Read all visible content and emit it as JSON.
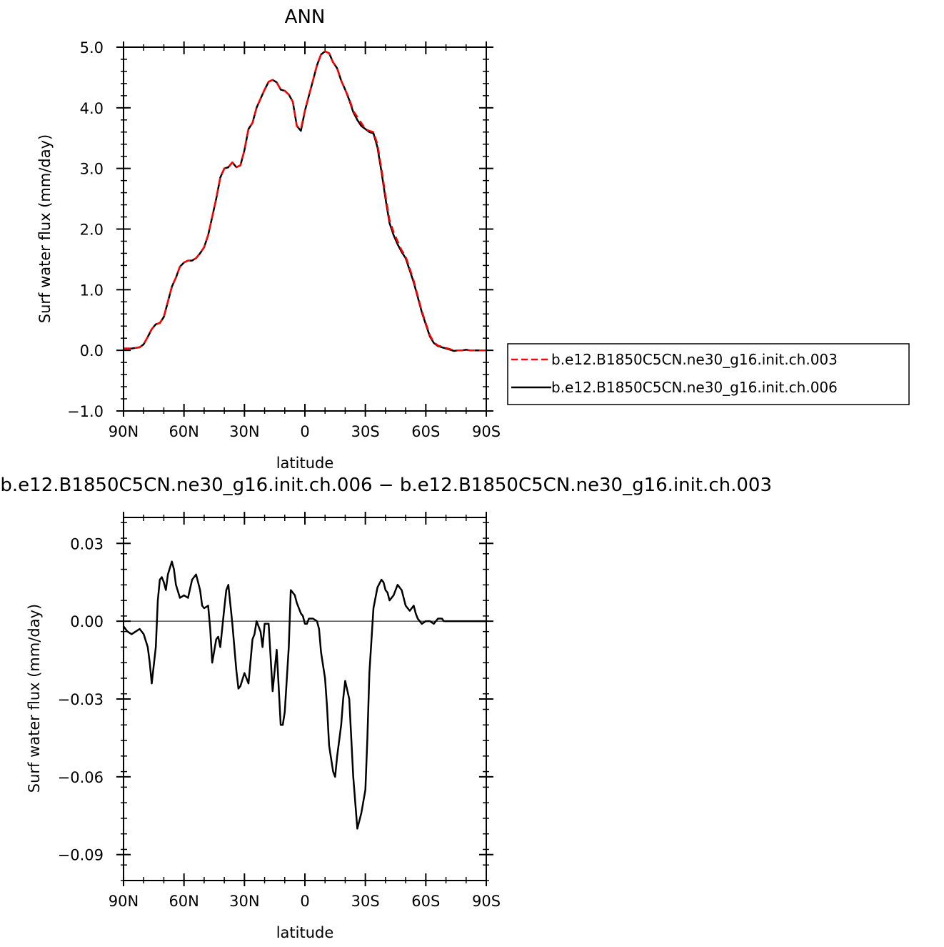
{
  "chart_data": [
    {
      "type": "line",
      "title": "ANN",
      "xlabel": "latitude",
      "ylabel": "Surf water flux (mm/day)",
      "xlim": [
        90,
        -90
      ],
      "ylim": [
        -1.0,
        5.0
      ],
      "xticks": [
        90,
        60,
        30,
        0,
        -30,
        -60,
        -90
      ],
      "xtick_labels": [
        "90N",
        "60N",
        "30N",
        "0",
        "30S",
        "60S",
        "90S"
      ],
      "yticks": [
        -1.0,
        0.0,
        1.0,
        2.0,
        3.0,
        4.0,
        5.0
      ],
      "ytick_labels": [
        "−1.0",
        "0.0",
        "1.0",
        "2.0",
        "3.0",
        "4.0",
        "5.0"
      ],
      "legend": "right",
      "series": [
        {
          "name": "b.e12.B1850C5CN.ne30_g16.init.ch.003",
          "color": "#ff0000",
          "dash": "dashed",
          "x": [
            90,
            86,
            82,
            80,
            78,
            76,
            74,
            72,
            70,
            68,
            66,
            64,
            62,
            60,
            58,
            56,
            54,
            52,
            50,
            48,
            46,
            44,
            42,
            40,
            38,
            36,
            34,
            32,
            30,
            28,
            26,
            24,
            22,
            20,
            18,
            16,
            14,
            12,
            10,
            8,
            6,
            4,
            2,
            0,
            -2,
            -4,
            -6,
            -8,
            -10,
            -12,
            -14,
            -16,
            -18,
            -20,
            -22,
            -24,
            -26,
            -28,
            -30,
            -32,
            -34,
            -36,
            -38,
            -40,
            -42,
            -44,
            -46,
            -48,
            -50,
            -52,
            -54,
            -56,
            -58,
            -60,
            -62,
            -64,
            -66,
            -68,
            -70,
            -72,
            -74,
            -76,
            -78,
            -80,
            -82,
            -84,
            -86,
            -88,
            -90
          ],
          "y": [
            0.03,
            0.03,
            0.05,
            0.1,
            0.22,
            0.35,
            0.43,
            0.45,
            0.55,
            0.8,
            1.05,
            1.2,
            1.38,
            1.45,
            1.48,
            1.48,
            1.52,
            1.6,
            1.7,
            1.9,
            2.2,
            2.5,
            2.85,
            3.0,
            3.02,
            3.1,
            3.02,
            3.05,
            3.3,
            3.65,
            3.75,
            4.0,
            4.15,
            4.3,
            4.43,
            4.46,
            4.42,
            4.3,
            4.28,
            4.22,
            4.1,
            3.7,
            3.65,
            3.95,
            4.2,
            4.45,
            4.7,
            4.88,
            4.93,
            4.9,
            4.75,
            4.65,
            4.45,
            4.3,
            4.15,
            3.95,
            3.85,
            3.75,
            3.65,
            3.62,
            3.6,
            3.4,
            3.0,
            2.55,
            2.15,
            1.95,
            1.8,
            1.65,
            1.55,
            1.35,
            1.15,
            0.9,
            0.65,
            0.45,
            0.25,
            0.13,
            0.08,
            0.06,
            0.04,
            0.02,
            0.0,
            0.0,
            0.0,
            0.01,
            0.0,
            0.0,
            0.0,
            0.0,
            0.0
          ]
        },
        {
          "name": "b.e12.B1850C5CN.ne30_g16.init.ch.006",
          "color": "#000000",
          "dash": "solid",
          "x": [
            90,
            86,
            82,
            80,
            78,
            76,
            74,
            72,
            70,
            68,
            66,
            64,
            62,
            60,
            58,
            56,
            54,
            52,
            50,
            48,
            46,
            44,
            42,
            40,
            38,
            36,
            34,
            32,
            30,
            28,
            26,
            24,
            22,
            20,
            18,
            16,
            14,
            12,
            10,
            8,
            6,
            4,
            2,
            0,
            -2,
            -4,
            -6,
            -8,
            -10,
            -12,
            -14,
            -16,
            -18,
            -20,
            -22,
            -24,
            -26,
            -28,
            -30,
            -32,
            -34,
            -36,
            -38,
            -40,
            -42,
            -44,
            -46,
            -48,
            -50,
            -52,
            -54,
            -56,
            -58,
            -60,
            -62,
            -64,
            -66,
            -68,
            -70,
            -72,
            -74,
            -76,
            -78,
            -80,
            -82,
            -84,
            -86,
            -88,
            -90
          ],
          "y": [
            0.03,
            0.03,
            0.05,
            0.1,
            0.22,
            0.35,
            0.43,
            0.45,
            0.55,
            0.8,
            1.05,
            1.2,
            1.38,
            1.45,
            1.48,
            1.48,
            1.52,
            1.6,
            1.7,
            1.9,
            2.2,
            2.5,
            2.85,
            3.0,
            3.02,
            3.1,
            3.02,
            3.05,
            3.3,
            3.65,
            3.75,
            4.0,
            4.15,
            4.3,
            4.43,
            4.46,
            4.42,
            4.3,
            4.28,
            4.22,
            4.1,
            3.7,
            3.62,
            3.95,
            4.2,
            4.45,
            4.7,
            4.88,
            4.93,
            4.9,
            4.75,
            4.65,
            4.45,
            4.3,
            4.13,
            3.93,
            3.8,
            3.7,
            3.65,
            3.6,
            3.58,
            3.35,
            2.95,
            2.5,
            2.1,
            1.9,
            1.75,
            1.62,
            1.52,
            1.32,
            1.12,
            0.88,
            0.63,
            0.43,
            0.23,
            0.12,
            0.07,
            0.05,
            0.03,
            0.01,
            -0.01,
            0.0,
            0.0,
            0.01,
            0.0,
            0.0,
            0.0,
            0.0,
            0.0
          ]
        }
      ]
    },
    {
      "type": "line",
      "title": "b.e12.B1850C5CN.ne30_g16.init.ch.006 − b.e12.B1850C5CN.ne30_g16.init.ch.003",
      "xlabel": "latitude",
      "ylabel": "Surf water flux (mm/day)",
      "xlim": [
        90,
        -90
      ],
      "ylim": [
        -0.1,
        0.04
      ],
      "xticks": [
        90,
        60,
        30,
        0,
        -30,
        -60,
        -90
      ],
      "xtick_labels": [
        "90N",
        "60N",
        "30N",
        "0",
        "30S",
        "60S",
        "90S"
      ],
      "yticks": [
        -0.09,
        -0.06,
        -0.03,
        0.0,
        0.03
      ],
      "ytick_labels": [
        "−0.09",
        "−0.06",
        "−0.03",
        "0.00",
        "0.03"
      ],
      "series": [
        {
          "color": "#000000",
          "dash": "solid",
          "x": [
            90,
            88,
            86,
            84,
            82,
            80,
            78,
            77,
            76,
            74,
            73,
            72,
            71,
            70,
            69,
            68,
            66,
            65,
            64,
            62,
            60,
            58,
            56,
            54,
            52,
            51,
            50,
            48,
            47,
            46,
            44,
            43,
            42,
            40,
            39,
            38,
            36,
            34,
            33,
            32,
            30,
            28,
            26,
            25,
            24,
            22,
            21,
            20,
            18,
            16,
            14,
            12,
            11,
            10,
            8,
            7,
            6,
            5,
            4,
            2,
            1,
            0,
            -1,
            -2,
            -4,
            -6,
            -7,
            -8,
            -10,
            -11,
            -12,
            -14,
            -15,
            -16,
            -18,
            -19,
            -20,
            -22,
            -24,
            -26,
            -28,
            -30,
            -31,
            -32,
            -34,
            -36,
            -38,
            -39,
            -40,
            -41,
            -42,
            -44,
            -45,
            -46,
            -48,
            -50,
            -52,
            -54,
            -55,
            -56,
            -58,
            -60,
            -62,
            -64,
            -65,
            -66,
            -68,
            -69,
            -70,
            -72,
            -73,
            -74,
            -76,
            -77,
            -78,
            -80,
            -82,
            -84,
            -86,
            -88,
            -90
          ],
          "y": [
            -0.002,
            -0.004,
            -0.005,
            -0.004,
            -0.003,
            -0.005,
            -0.01,
            -0.016,
            -0.024,
            -0.01,
            0.008,
            0.016,
            0.017,
            0.015,
            0.012,
            0.018,
            0.023,
            0.02,
            0.014,
            0.009,
            0.01,
            0.009,
            0.016,
            0.018,
            0.012,
            0.006,
            0.005,
            0.006,
            -0.003,
            -0.016,
            -0.007,
            -0.006,
            -0.01,
            0.005,
            0.012,
            0.014,
            -0.001,
            -0.019,
            -0.026,
            -0.025,
            -0.02,
            -0.024,
            -0.007,
            -0.005,
            0.0,
            -0.004,
            -0.01,
            -0.001,
            -0.001,
            -0.027,
            -0.011,
            -0.04,
            -0.04,
            -0.035,
            -0.01,
            0.012,
            0.011,
            0.01,
            0.007,
            0.003,
            0.002,
            -0.001,
            -0.001,
            0.001,
            0.001,
            0.0,
            -0.003,
            -0.012,
            -0.022,
            -0.033,
            -0.048,
            -0.058,
            -0.06,
            -0.052,
            -0.04,
            -0.03,
            -0.023,
            -0.03,
            -0.06,
            -0.08,
            -0.074,
            -0.065,
            -0.045,
            -0.02,
            0.005,
            0.013,
            0.016,
            0.015,
            0.012,
            0.011,
            0.008,
            0.01,
            0.012,
            0.014,
            0.012,
            0.006,
            0.004,
            0.006,
            0.003,
            0.001,
            -0.001,
            0.0,
            0.0,
            -0.001,
            0.0,
            0.001,
            0.001,
            0.0,
            0.0,
            0.0,
            0.0,
            0.0,
            0.0,
            0.0,
            0.0,
            0.0,
            0.0,
            0.0,
            0.0,
            0.0,
            0.0
          ]
        }
      ]
    }
  ]
}
